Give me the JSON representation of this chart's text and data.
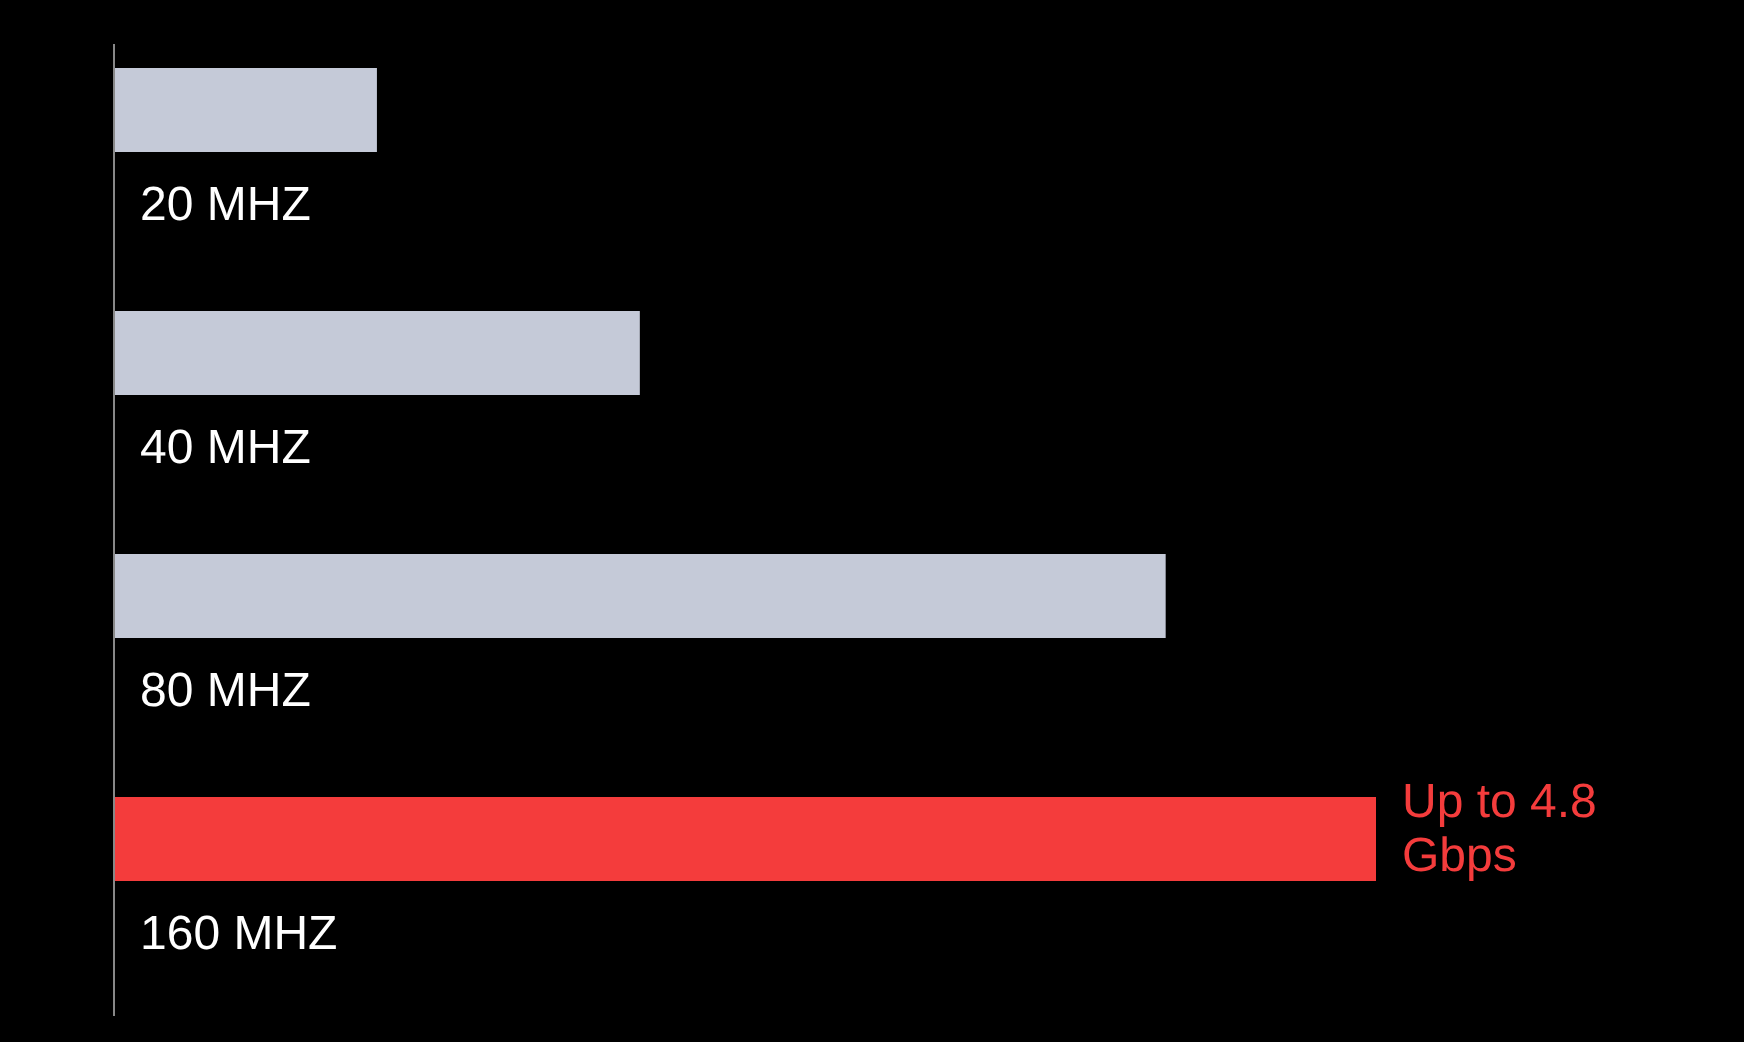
{
  "chart_data": {
    "type": "bar",
    "orientation": "horizontal",
    "categories": [
      "20 MHZ",
      "40 MHZ",
      "80 MHZ",
      "160 MHZ"
    ],
    "values": [
      1.0,
      2.0,
      4.0,
      4.8
    ],
    "colors": [
      "#c5cad8",
      "#c5cad8",
      "#c5cad8",
      "#f43c3c"
    ],
    "value_labels": [
      null,
      null,
      null,
      "Up to 4.8 Gbps"
    ]
  }
}
